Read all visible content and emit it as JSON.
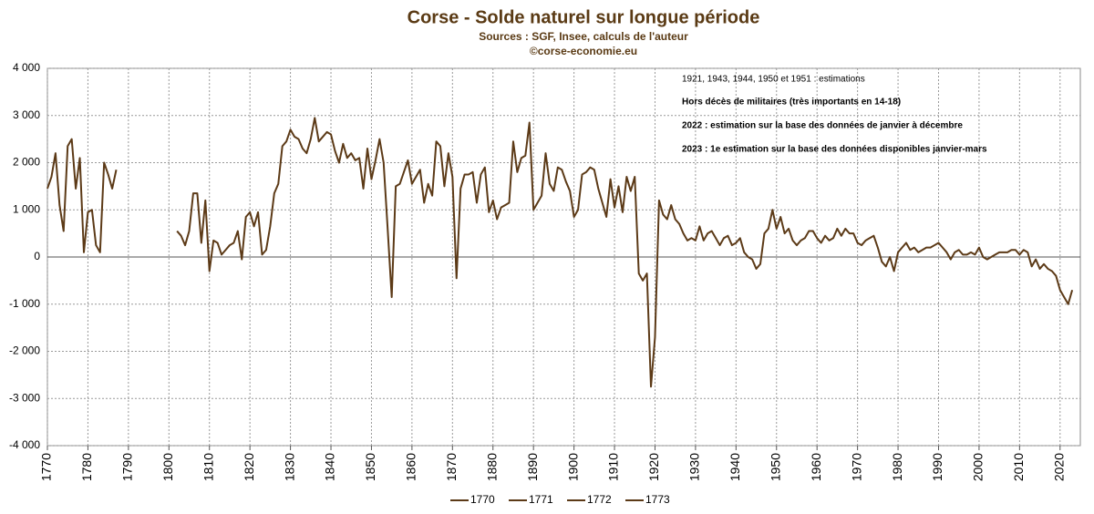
{
  "chart_data": {
    "type": "line",
    "title": "Corse - Solde naturel sur longue période",
    "subtitle": [
      "Sources : SGF, Insee, calculs de l'auteur",
      "©corse-economie.eu"
    ],
    "annotations": [
      {
        "text": "1921, 1943, 1944, 1950 et 1951 : estimations",
        "bold": false
      },
      {
        "text": "Hors décès de militaires (très importants en 14-18)",
        "bold": true
      },
      {
        "text": "2022 : estimation sur la base des données de janvier à décembre",
        "bold": true
      },
      {
        "text": "2023 : 1e estimation sur la base des données disponibles janvier-mars",
        "bold": true
      }
    ],
    "legend": [
      "1770",
      "1771",
      "1772",
      "1773"
    ],
    "x": [
      1770,
      1771,
      1772,
      1773,
      1774,
      1775,
      1776,
      1777,
      1778,
      1779,
      1780,
      1781,
      1782,
      1783,
      1784,
      1785,
      1786,
      1787,
      1788,
      1789,
      1790,
      1791,
      1792,
      1793,
      1794,
      1795,
      1796,
      1797,
      1798,
      1799,
      1800,
      1801,
      1802,
      1803,
      1804,
      1805,
      1806,
      1807,
      1808,
      1809,
      1810,
      1811,
      1812,
      1813,
      1814,
      1815,
      1816,
      1817,
      1818,
      1819,
      1820,
      1821,
      1822,
      1823,
      1824,
      1825,
      1826,
      1827,
      1828,
      1829,
      1830,
      1831,
      1832,
      1833,
      1834,
      1835,
      1836,
      1837,
      1838,
      1839,
      1840,
      1841,
      1842,
      1843,
      1844,
      1845,
      1846,
      1847,
      1848,
      1849,
      1850,
      1851,
      1852,
      1853,
      1854,
      1855,
      1856,
      1857,
      1858,
      1859,
      1860,
      1861,
      1862,
      1863,
      1864,
      1865,
      1866,
      1867,
      1868,
      1869,
      1870,
      1871,
      1872,
      1873,
      1874,
      1875,
      1876,
      1877,
      1878,
      1879,
      1880,
      1881,
      1882,
      1883,
      1884,
      1885,
      1886,
      1887,
      1888,
      1889,
      1890,
      1891,
      1892,
      1893,
      1894,
      1895,
      1896,
      1897,
      1898,
      1899,
      1900,
      1901,
      1902,
      1903,
      1904,
      1905,
      1906,
      1907,
      1908,
      1909,
      1910,
      1911,
      1912,
      1913,
      1914,
      1915,
      1916,
      1917,
      1918,
      1919,
      1920,
      1921,
      1922,
      1923,
      1924,
      1925,
      1926,
      1927,
      1928,
      1929,
      1930,
      1931,
      1932,
      1933,
      1934,
      1935,
      1936,
      1937,
      1938,
      1939,
      1940,
      1941,
      1942,
      1943,
      1944,
      1945,
      1946,
      1947,
      1948,
      1949,
      1950,
      1951,
      1952,
      1953,
      1954,
      1955,
      1956,
      1957,
      1958,
      1959,
      1960,
      1961,
      1962,
      1963,
      1964,
      1965,
      1966,
      1967,
      1968,
      1969,
      1970,
      1971,
      1972,
      1973,
      1974,
      1975,
      1976,
      1977,
      1978,
      1979,
      1980,
      1981,
      1982,
      1983,
      1984,
      1985,
      1986,
      1987,
      1988,
      1989,
      1990,
      1991,
      1992,
      1993,
      1994,
      1995,
      1996,
      1997,
      1998,
      1999,
      2000,
      2001,
      2002,
      2003,
      2004,
      2005,
      2006,
      2007,
      2008,
      2009,
      2010,
      2011,
      2012,
      2013,
      2014,
      2015,
      2016,
      2017,
      2018,
      2019,
      2020,
      2021,
      2022,
      2023
    ],
    "series": [
      {
        "color": "#5c3a17",
        "values": [
          1450,
          1700,
          2200,
          1100,
          550,
          2350,
          2500,
          1450,
          2100,
          100,
          950,
          1000,
          250,
          100,
          2000,
          1750,
          1450,
          1850,
          null,
          null,
          null,
          null,
          null,
          null,
          null,
          null,
          null,
          null,
          null,
          null,
          null,
          null,
          550,
          450,
          250,
          550,
          1350,
          1350,
          300,
          1200,
          -300,
          350,
          300,
          50,
          150,
          250,
          300,
          550,
          -50,
          850,
          950,
          650,
          950,
          50,
          150,
          650,
          1350,
          1550,
          2350,
          2450,
          2700,
          2550,
          2500,
          2300,
          2200,
          2500,
          2950,
          2450,
          2550,
          2650,
          2600,
          2250,
          2000,
          2400,
          2100,
          2200,
          2050,
          2100,
          1450,
          2300,
          1650,
          2050,
          2500,
          2000,
          600,
          -850,
          1500,
          1550,
          1800,
          2050,
          1550,
          1700,
          1850,
          1150,
          1550,
          1300,
          2450,
          2350,
          1500,
          2200,
          1700,
          -450,
          1450,
          1750,
          1750,
          1800,
          1150,
          1750,
          1900,
          950,
          1200,
          800,
          1050,
          1100,
          1150,
          2450,
          1800,
          2100,
          2150,
          2850,
          1000,
          1150,
          1300,
          2200,
          1550,
          1400,
          1900,
          1850,
          1600,
          1400,
          850,
          1000,
          1750,
          1800,
          1900,
          1850,
          1450,
          1150,
          850,
          1650,
          1050,
          1500,
          950,
          1700,
          1400,
          1700,
          -350,
          -500,
          -350,
          -2750,
          -1700,
          1200,
          900,
          800,
          1100,
          800,
          700,
          500,
          350,
          400,
          350,
          650,
          350,
          500,
          550,
          400,
          250,
          400,
          450,
          250,
          300,
          400,
          100,
          0,
          -50,
          -250,
          -150,
          500,
          600,
          1000,
          600,
          850,
          500,
          600,
          350,
          250,
          350,
          400,
          550,
          550,
          400,
          300,
          450,
          350,
          400,
          600,
          450,
          600,
          500,
          500,
          300,
          250,
          350,
          400,
          450,
          200,
          -100,
          -200,
          0,
          -300,
          100,
          200,
          300,
          150,
          200,
          100,
          150,
          200,
          200,
          250,
          300,
          200,
          100,
          -50,
          100,
          150,
          50,
          50,
          100,
          50,
          200,
          0,
          -50,
          0,
          50,
          100,
          100,
          100,
          150,
          150,
          50,
          150,
          100,
          -200,
          -50,
          -250,
          -150,
          -250,
          -300,
          -400,
          -700,
          -850,
          -1000,
          -700
        ]
      }
    ],
    "xlim": [
      1770,
      2025
    ],
    "xticks": [
      1770,
      1780,
      1790,
      1800,
      1810,
      1820,
      1830,
      1840,
      1850,
      1860,
      1870,
      1880,
      1890,
      1900,
      1910,
      1920,
      1930,
      1940,
      1950,
      1960,
      1970,
      1980,
      1990,
      2000,
      2010,
      2020
    ],
    "ylim": [
      -4000,
      4000
    ],
    "yticks": [
      {
        "value": -4000,
        "label": "-4 000"
      },
      {
        "value": -3000,
        "label": "-3 000"
      },
      {
        "value": -2000,
        "label": "-2 000"
      },
      {
        "value": -1000,
        "label": "-1 000"
      },
      0,
      {
        "value": 1000,
        "label": "1 000"
      },
      {
        "value": 2000,
        "label": "2 000"
      },
      {
        "value": 3000,
        "label": "3 000"
      },
      {
        "value": 4000,
        "label": "4 000"
      }
    ],
    "grid": true
  }
}
